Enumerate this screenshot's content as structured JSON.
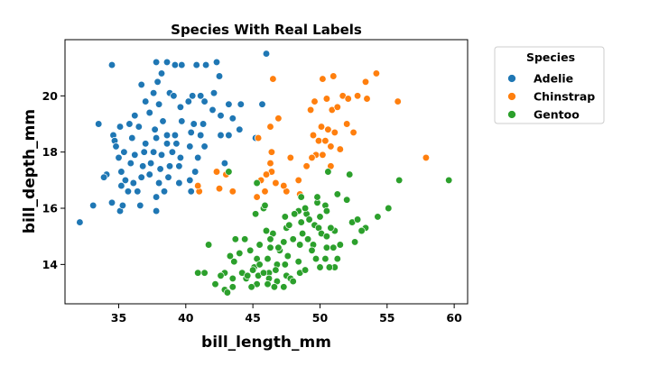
{
  "chart_data": {
    "type": "scatter",
    "title": "Species With Real Labels",
    "xlabel": "bill_length_mm",
    "ylabel": "bill_depth_mm",
    "xlim": [
      31,
      61
    ],
    "ylim": [
      12.6,
      22.0
    ],
    "xticks": [
      35,
      40,
      45,
      50,
      55,
      60
    ],
    "yticks": [
      14,
      16,
      18,
      20
    ],
    "grid": false,
    "legend": {
      "title": "Species",
      "placement": "outside-upper-right"
    },
    "series": [
      {
        "name": "Adelie",
        "color": "#1f77b4",
        "points": [
          [
            34.5,
            21.1
          ],
          [
            37.8,
            21.2
          ],
          [
            38.6,
            21.2
          ],
          [
            40.8,
            21.1
          ],
          [
            41.5,
            21.1
          ],
          [
            42.3,
            21.2
          ],
          [
            36.7,
            20.4
          ],
          [
            37.9,
            20.5
          ],
          [
            38.2,
            20.8
          ],
          [
            39.2,
            21.1
          ],
          [
            39.7,
            21.1
          ],
          [
            42.5,
            20.7
          ],
          [
            37.6,
            20.1
          ],
          [
            38.8,
            20.1
          ],
          [
            39.1,
            20.0
          ],
          [
            40.5,
            20.0
          ],
          [
            41.1,
            20.0
          ],
          [
            42.1,
            20.1
          ],
          [
            37.0,
            19.8
          ],
          [
            38.0,
            19.7
          ],
          [
            39.6,
            19.6
          ],
          [
            40.2,
            19.8
          ],
          [
            41.4,
            19.8
          ],
          [
            42.0,
            19.5
          ],
          [
            43.2,
            19.7
          ],
          [
            36.2,
            19.3
          ],
          [
            37.3,
            19.4
          ],
          [
            38.3,
            19.1
          ],
          [
            39.7,
            19.1
          ],
          [
            40.6,
            19.0
          ],
          [
            41.3,
            19.0
          ],
          [
            43.5,
            19.2
          ],
          [
            35.1,
            18.9
          ],
          [
            35.8,
            19.0
          ],
          [
            36.5,
            18.9
          ],
          [
            37.7,
            18.8
          ],
          [
            38.6,
            18.6
          ],
          [
            39.2,
            18.6
          ],
          [
            40.4,
            18.7
          ],
          [
            41.1,
            18.6
          ],
          [
            42.6,
            18.6
          ],
          [
            33.5,
            19.0
          ],
          [
            34.6,
            18.6
          ],
          [
            34.7,
            18.4
          ],
          [
            36.0,
            18.5
          ],
          [
            37.0,
            18.3
          ],
          [
            37.8,
            18.5
          ],
          [
            38.6,
            18.3
          ],
          [
            39.3,
            18.3
          ],
          [
            40.3,
            18.2
          ],
          [
            41.4,
            18.2
          ],
          [
            44.0,
            18.8
          ],
          [
            34.8,
            18.2
          ],
          [
            35.4,
            18.0
          ],
          [
            36.2,
            17.9
          ],
          [
            36.9,
            18.0
          ],
          [
            37.6,
            18.0
          ],
          [
            38.2,
            17.9
          ],
          [
            39.0,
            18.0
          ],
          [
            39.6,
            17.8
          ],
          [
            40.9,
            17.8
          ],
          [
            35.0,
            17.8
          ],
          [
            35.9,
            17.6
          ],
          [
            36.8,
            17.5
          ],
          [
            37.4,
            17.6
          ],
          [
            38.1,
            17.4
          ],
          [
            38.8,
            17.5
          ],
          [
            39.5,
            17.5
          ],
          [
            40.7,
            17.3
          ],
          [
            42.9,
            17.6
          ],
          [
            34.1,
            17.2
          ],
          [
            35.2,
            17.3
          ],
          [
            35.5,
            17.0
          ],
          [
            36.1,
            16.9
          ],
          [
            36.7,
            17.1
          ],
          [
            37.3,
            17.2
          ],
          [
            38.0,
            16.9
          ],
          [
            38.7,
            17.1
          ],
          [
            39.5,
            16.9
          ],
          [
            40.3,
            17.0
          ],
          [
            33.9,
            17.1
          ],
          [
            35.2,
            16.8
          ],
          [
            35.7,
            16.6
          ],
          [
            36.4,
            16.6
          ],
          [
            37.8,
            16.4
          ],
          [
            38.4,
            16.6
          ],
          [
            40.4,
            16.6
          ],
          [
            34.5,
            16.2
          ],
          [
            35.1,
            15.9
          ],
          [
            35.3,
            16.1
          ],
          [
            36.6,
            16.1
          ],
          [
            37.8,
            15.9
          ],
          [
            33.1,
            16.1
          ],
          [
            32.1,
            15.5
          ],
          [
            44.1,
            19.7
          ],
          [
            45.7,
            19.7
          ],
          [
            46.0,
            21.5
          ],
          [
            45.2,
            18.5
          ],
          [
            43.2,
            18.6
          ],
          [
            42.6,
            19.3
          ]
        ]
      },
      {
        "name": "Chinstrap",
        "color": "#ff7f0e",
        "points": [
          [
            46.5,
            20.6
          ],
          [
            50.2,
            20.6
          ],
          [
            51.0,
            20.7
          ],
          [
            53.4,
            20.5
          ],
          [
            54.2,
            20.8
          ],
          [
            55.8,
            19.8
          ],
          [
            49.6,
            19.8
          ],
          [
            50.5,
            19.9
          ],
          [
            51.7,
            20.0
          ],
          [
            52.1,
            19.9
          ],
          [
            52.8,
            20.0
          ],
          [
            53.5,
            19.9
          ],
          [
            49.3,
            19.5
          ],
          [
            50.9,
            19.5
          ],
          [
            51.3,
            19.6
          ],
          [
            52.0,
            19.0
          ],
          [
            45.4,
            18.5
          ],
          [
            46.3,
            18.9
          ],
          [
            50.1,
            18.9
          ],
          [
            50.6,
            18.8
          ],
          [
            51.1,
            18.7
          ],
          [
            52.5,
            18.7
          ],
          [
            49.5,
            18.6
          ],
          [
            49.9,
            18.4
          ],
          [
            50.4,
            18.4
          ],
          [
            50.8,
            18.2
          ],
          [
            51.5,
            18.1
          ],
          [
            46.4,
            18.0
          ],
          [
            47.8,
            17.8
          ],
          [
            49.7,
            17.9
          ],
          [
            50.2,
            17.9
          ],
          [
            50.8,
            17.5
          ],
          [
            57.9,
            17.8
          ],
          [
            46.3,
            17.6
          ],
          [
            46.4,
            17.3
          ],
          [
            49.0,
            17.5
          ],
          [
            49.4,
            17.8
          ],
          [
            45.6,
            17.0
          ],
          [
            46.0,
            17.2
          ],
          [
            48.4,
            17.0
          ],
          [
            42.3,
            17.3
          ],
          [
            43.0,
            17.2
          ],
          [
            45.9,
            16.6
          ],
          [
            46.7,
            16.9
          ],
          [
            47.5,
            16.6
          ],
          [
            41.0,
            16.6
          ],
          [
            42.5,
            16.7
          ],
          [
            43.5,
            16.6
          ],
          [
            45.3,
            16.4
          ],
          [
            47.3,
            16.8
          ],
          [
            48.5,
            16.5
          ],
          [
            40.9,
            16.8
          ],
          [
            46.9,
            19.2
          ]
        ]
      },
      {
        "name": "Gentoo",
        "color": "#2ca02c",
        "points": [
          [
            50.6,
            17.3
          ],
          [
            52.2,
            17.2
          ],
          [
            55.9,
            17.0
          ],
          [
            59.6,
            17.0
          ],
          [
            43.2,
            17.3
          ],
          [
            51.3,
            16.5
          ],
          [
            52.0,
            16.3
          ],
          [
            49.8,
            16.2
          ],
          [
            50.4,
            16.1
          ],
          [
            49.0,
            15.8
          ],
          [
            48.9,
            16.0
          ],
          [
            48.4,
            15.9
          ],
          [
            50.0,
            15.7
          ],
          [
            50.5,
            15.9
          ],
          [
            47.4,
            15.7
          ],
          [
            48.1,
            15.8
          ],
          [
            49.2,
            15.6
          ],
          [
            49.6,
            15.4
          ],
          [
            45.2,
            15.8
          ],
          [
            45.8,
            16.0
          ],
          [
            47.5,
            15.3
          ],
          [
            48.6,
            15.5
          ],
          [
            49.9,
            15.3
          ],
          [
            51.1,
            15.2
          ],
          [
            53.4,
            15.3
          ],
          [
            54.3,
            15.7
          ],
          [
            55.1,
            16.0
          ],
          [
            46.0,
            15.2
          ],
          [
            46.5,
            15.1
          ],
          [
            47.7,
            15.4
          ],
          [
            48.7,
            15.1
          ],
          [
            49.1,
            14.9
          ],
          [
            50.1,
            15.1
          ],
          [
            50.8,
            15.3
          ],
          [
            46.3,
            14.9
          ],
          [
            47.3,
            14.8
          ],
          [
            48.0,
            14.9
          ],
          [
            49.5,
            14.7
          ],
          [
            50.5,
            14.6
          ],
          [
            51.0,
            14.6
          ],
          [
            52.6,
            14.8
          ],
          [
            53.1,
            15.2
          ],
          [
            43.7,
            14.9
          ],
          [
            44.4,
            14.9
          ],
          [
            45.5,
            14.7
          ],
          [
            46.3,
            14.6
          ],
          [
            47.0,
            14.5
          ],
          [
            47.6,
            14.3
          ],
          [
            48.5,
            14.7
          ],
          [
            49.4,
            14.5
          ],
          [
            50.4,
            14.2
          ],
          [
            51.5,
            14.7
          ],
          [
            52.4,
            15.5
          ],
          [
            41.7,
            14.7
          ],
          [
            44.0,
            14.4
          ],
          [
            44.8,
            14.5
          ],
          [
            45.3,
            14.2
          ],
          [
            46.1,
            14.2
          ],
          [
            46.8,
            14.0
          ],
          [
            47.4,
            14.0
          ],
          [
            48.4,
            14.1
          ],
          [
            49.7,
            14.2
          ],
          [
            50.0,
            13.9
          ],
          [
            51.1,
            13.9
          ],
          [
            41.4,
            13.7
          ],
          [
            43.3,
            14.3
          ],
          [
            43.6,
            14.1
          ],
          [
            45.1,
            13.9
          ],
          [
            45.5,
            14.0
          ],
          [
            46.2,
            13.7
          ],
          [
            46.7,
            13.8
          ],
          [
            47.5,
            13.6
          ],
          [
            48.5,
            13.7
          ],
          [
            50.7,
            13.9
          ],
          [
            51.3,
            14.2
          ],
          [
            42.9,
            13.7
          ],
          [
            44.2,
            13.7
          ],
          [
            45.0,
            13.8
          ],
          [
            45.4,
            13.6
          ],
          [
            45.8,
            13.7
          ],
          [
            46.2,
            13.5
          ],
          [
            46.8,
            13.4
          ],
          [
            47.8,
            13.5
          ],
          [
            48.9,
            13.8
          ],
          [
            40.9,
            13.7
          ],
          [
            42.6,
            13.6
          ],
          [
            43.5,
            13.5
          ],
          [
            44.5,
            13.5
          ],
          [
            45.3,
            13.3
          ],
          [
            46.6,
            13.2
          ],
          [
            48.0,
            13.4
          ],
          [
            42.2,
            13.3
          ],
          [
            42.9,
            13.1
          ],
          [
            43.5,
            13.2
          ],
          [
            44.9,
            13.2
          ],
          [
            46.1,
            13.3
          ],
          [
            47.3,
            13.2
          ],
          [
            43.1,
            13.0
          ],
          [
            44.6,
            13.6
          ],
          [
            46.9,
            14.6
          ],
          [
            48.6,
            16.4
          ],
          [
            49.8,
            16.4
          ],
          [
            45.9,
            16.1
          ],
          [
            45.3,
            16.9
          ],
          [
            50.5,
            15.0
          ],
          [
            52.8,
            15.6
          ]
        ]
      }
    ]
  }
}
